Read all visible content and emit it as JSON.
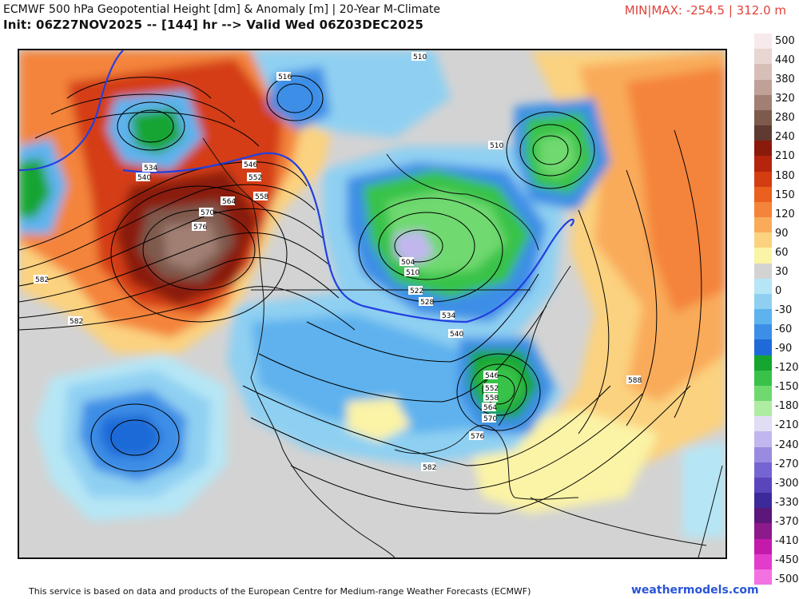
{
  "header": {
    "title": "ECMWF 500 hPa Geopotential Height [dm] & Anomaly [m] | 20-Year M-Climate",
    "init_line": "Init: 06Z27NOV2025 -- [144] hr --> Valid Wed 06Z03DEC2025",
    "minmax": "MIN|MAX: -254.5 | 312.0 m"
  },
  "colorbar": {
    "labels": [
      "500",
      "440",
      "380",
      "320",
      "280",
      "240",
      "210",
      "180",
      "150",
      "120",
      "90",
      "60",
      "30",
      "0",
      "-30",
      "-60",
      "-90",
      "-120",
      "-150",
      "-180",
      "-210",
      "-240",
      "-270",
      "-300",
      "-330",
      "-370",
      "-410",
      "-450",
      "-500"
    ],
    "colors": [
      "#f7e9ec",
      "#e9d6d2",
      "#d7bfb8",
      "#bfa197",
      "#a27f73",
      "#7e5a4d",
      "#5e3a30",
      "#8a1a0c",
      "#b5240d",
      "#d43d12",
      "#e9601f",
      "#f4843a",
      "#f9ab5a",
      "#fbd27f",
      "#fbf3a6",
      "#d3d3d3",
      "#b6e6f5",
      "#8fd0f2",
      "#5eb2ee",
      "#3d8ee6",
      "#1f6ad8",
      "#15a530",
      "#39c24a",
      "#6fd96f",
      "#aeeca2",
      "#e0ddf5",
      "#c1b7ee",
      "#9a8be0",
      "#7565d2",
      "#5a45bd",
      "#3d2a9a",
      "#5b1779",
      "#8d1a8a",
      "#c41aab",
      "#e33ccc",
      "#f371e0"
    ]
  },
  "contours": {
    "height_labels": [
      "510",
      "516",
      "510",
      "534",
      "540",
      "546",
      "552",
      "558",
      "564",
      "570",
      "576",
      "582",
      "582",
      "504",
      "510",
      "522",
      "528",
      "534",
      "540",
      "546",
      "552",
      "558",
      "564",
      "570",
      "576",
      "582",
      "588"
    ]
  },
  "footer": {
    "attribution": "This service is based on data and products of the European Centre for Medium-range Weather Forecasts (ECMWF)",
    "brand": "weathermodels.com"
  }
}
